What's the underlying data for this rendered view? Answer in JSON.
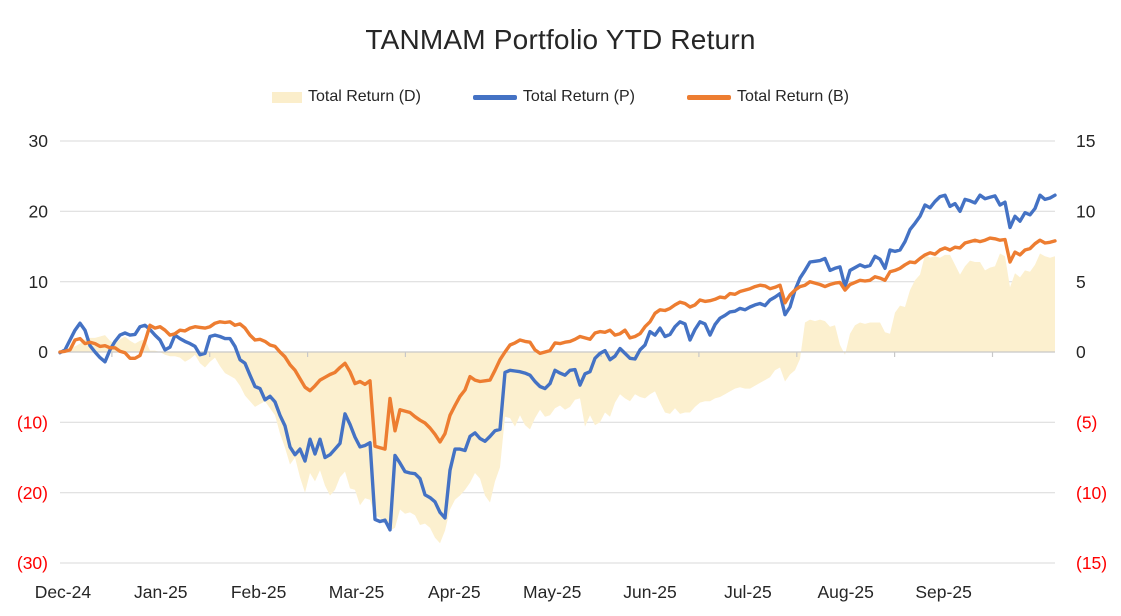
{
  "title": "TANMAM Portfolio YTD Return",
  "legend": {
    "items": [
      {
        "label": "Total Return (D)",
        "swatch": "area",
        "color": "#FBEECB"
      },
      {
        "label": "Total Return (P)",
        "swatch": "line",
        "color": "#4472C4"
      },
      {
        "label": "Total Return (B)",
        "swatch": "line",
        "color": "#ED7D31"
      }
    ]
  },
  "colors": {
    "grid": "#D9D9D9",
    "axis_line": "#C8C8C8",
    "label": "#262626",
    "negative_label": "#FF0000",
    "area_fill": "#FCF0CF"
  },
  "chart_data": {
    "type": "line",
    "title": "TANMAM Portfolio YTD Return",
    "x_unit": "months (0 = Jan-25 start)",
    "x_start": -0.53,
    "x_step": 0.0511,
    "x_tick_labels": [
      "Dec-24",
      "Jan-25",
      "Feb-25",
      "Mar-25",
      "Apr-25",
      "May-25",
      "Jun-25",
      "Jul-25",
      "Aug-25",
      "Sep-25"
    ],
    "x_tick_label_positions": [
      -0.5,
      0.5,
      1.5,
      2.5,
      3.5,
      4.5,
      5.5,
      6.5,
      7.5,
      8.5
    ],
    "x_axis_tick_marks": [
      0,
      1,
      2,
      3,
      4,
      5,
      6,
      7,
      8,
      9
    ],
    "grid": "horizontal",
    "legend_position": "top",
    "y_left": {
      "min": -30,
      "max": 30,
      "tick_values": [
        30,
        20,
        10,
        0,
        -10,
        -20,
        -30
      ],
      "tick_labels": [
        "30",
        "20",
        "10",
        "0",
        "(10)",
        "(20)",
        "(30)"
      ]
    },
    "y_right": {
      "min": -15,
      "max": 15,
      "tick_values": [
        15,
        10,
        5,
        0,
        -5,
        -10,
        -15
      ],
      "tick_labels": [
        "15",
        "10",
        "5",
        "0",
        "(5)",
        "(10)",
        "(15)"
      ]
    },
    "series": [
      {
        "name": "Total Return (D)",
        "type": "area",
        "axis": "right",
        "color": "#FCF0CF",
        "values": [
          0.0,
          0.1,
          0.3,
          0.4,
          0.6,
          0.9,
          1.0,
          1.0,
          1.1,
          1.2,
          0.8,
          0.6,
          0.9,
          1.1,
          0.8,
          0.6,
          0.8,
          0.9,
          0.1,
          0.1,
          0.0,
          -0.2,
          -0.3,
          -0.3,
          -0.4,
          -0.7,
          -0.5,
          -0.2,
          -0.8,
          -1.1,
          -0.7,
          -0.4,
          -1.0,
          -1.5,
          -1.7,
          -1.9,
          -2.4,
          -3.1,
          -3.5,
          -3.9,
          -3.7,
          -3.5,
          -4.0,
          -4.5,
          -5.8,
          -6.8,
          -8.0,
          -7.5,
          -8.9,
          -10.0,
          -8.6,
          -9.2,
          -8.4,
          -9.5,
          -10.2,
          -9.8,
          -8.9,
          -8.5,
          -9.7,
          -9.8,
          -10.9,
          -10.4,
          -10.5,
          -11.6,
          -11.8,
          -12.2,
          -12.7,
          -12.5,
          -11.2,
          -11.5,
          -11.4,
          -11.6,
          -12.3,
          -12.2,
          -12.5,
          -13.2,
          -13.6,
          -12.7,
          -11.2,
          -10.5,
          -10.2,
          -9.8,
          -9.3,
          -8.6,
          -9.0,
          -10.2,
          -10.7,
          -9.2,
          -8.2,
          -4.6,
          -4.7,
          -5.3,
          -4.5,
          -5.2,
          -5.5,
          -4.7,
          -4.1,
          -4.6,
          -4.5,
          -4.0,
          -3.8,
          -4.1,
          -3.9,
          -3.4,
          -3.3,
          -5.3,
          -4.5,
          -5.2,
          -5.0,
          -4.3,
          -4.6,
          -3.6,
          -3.0,
          -3.3,
          -3.5,
          -3.0,
          -3.2,
          -3.3,
          -3.0,
          -2.8,
          -3.6,
          -4.3,
          -4.4,
          -4.0,
          -4.4,
          -4.3,
          -4.3,
          -3.9,
          -3.6,
          -3.5,
          -3.5,
          -3.3,
          -3.2,
          -3.0,
          -2.8,
          -2.6,
          -2.5,
          -2.6,
          -2.6,
          -2.4,
          -2.2,
          -2.0,
          -1.8,
          -1.3,
          -1.1,
          -2.1,
          -1.6,
          -1.3,
          -0.5,
          2.1,
          2.3,
          2.2,
          2.3,
          2.2,
          1.8,
          1.9,
          0.5,
          -0.2,
          1.3,
          1.9,
          2.1,
          2.0,
          2.1,
          2.1,
          2.1,
          1.4,
          1.3,
          2.8,
          3.3,
          3.2,
          4.4,
          5.1,
          5.5,
          6.9,
          6.7,
          6.8,
          6.7,
          6.9,
          6.9,
          6.2,
          5.5,
          6.1,
          6.5,
          6.4,
          6.4,
          5.8,
          6.0,
          6.1,
          7.0,
          6.8,
          4.6,
          5.6,
          5.3,
          5.8,
          5.7,
          6.2,
          7.0,
          6.8,
          6.7,
          6.8
        ]
      },
      {
        "name": "Total Return (P)",
        "type": "line",
        "axis": "left",
        "color": "#4472C4",
        "values": [
          -0.1,
          0.3,
          1.7,
          3.1,
          4.1,
          3.1,
          0.9,
          0.0,
          -0.8,
          -1.4,
          0.3,
          1.5,
          2.4,
          2.7,
          2.4,
          2.5,
          3.6,
          3.8,
          3.2,
          2.4,
          1.7,
          0.3,
          0.7,
          2.4,
          1.9,
          1.5,
          1.2,
          0.8,
          -0.4,
          -0.2,
          2.2,
          2.4,
          2.2,
          1.9,
          1.9,
          0.8,
          -1.1,
          -1.6,
          -3.3,
          -4.9,
          -5.2,
          -6.8,
          -6.3,
          -7.1,
          -9.0,
          -10.5,
          -13.5,
          -14.6,
          -13.8,
          -15.5,
          -12.4,
          -14.5,
          -12.4,
          -15.0,
          -14.6,
          -13.8,
          -13.0,
          -8.8,
          -10.3,
          -12.1,
          -13.5,
          -13.3,
          -12.9,
          -23.8,
          -24.1,
          -23.9,
          -25.3,
          -14.7,
          -15.8,
          -17.0,
          -17.2,
          -17.3,
          -18.0,
          -20.3,
          -20.7,
          -21.3,
          -22.8,
          -23.6,
          -16.8,
          -13.8,
          -13.8,
          -14.0,
          -12.0,
          -11.5,
          -12.3,
          -12.7,
          -12.0,
          -11.2,
          -11.0,
          -2.9,
          -2.6,
          -2.7,
          -2.8,
          -3.0,
          -3.3,
          -4.2,
          -4.9,
          -5.2,
          -4.5,
          -2.6,
          -3.0,
          -3.3,
          -2.6,
          -2.5,
          -4.7,
          -3.1,
          -2.8,
          -0.9,
          -0.2,
          0.2,
          -1.1,
          -0.6,
          0.5,
          -0.2,
          -0.9,
          -1.0,
          0.3,
          1.0,
          2.9,
          2.4,
          3.4,
          2.2,
          2.5,
          3.6,
          4.3,
          4.0,
          1.7,
          3.2,
          4.3,
          4.0,
          2.4,
          3.9,
          4.8,
          5.2,
          5.7,
          5.8,
          6.2,
          6.0,
          6.4,
          6.7,
          6.9,
          6.6,
          7.4,
          7.8,
          8.3,
          5.3,
          6.4,
          8.8,
          10.5,
          11.6,
          12.8,
          12.9,
          13.0,
          13.3,
          11.6,
          11.9,
          12.1,
          9.3,
          11.6,
          12.0,
          12.4,
          12.1,
          12.3,
          13.6,
          13.2,
          11.9,
          14.5,
          14.3,
          14.5,
          15.7,
          17.4,
          18.3,
          19.3,
          20.9,
          20.5,
          21.4,
          22.1,
          22.3,
          20.7,
          21.1,
          20.0,
          21.7,
          21.5,
          21.2,
          22.3,
          21.8,
          22.0,
          22.2,
          20.9,
          21.3,
          17.7,
          19.3,
          18.6,
          19.8,
          19.5,
          20.4,
          22.3,
          21.7,
          21.9,
          22.3
        ]
      },
      {
        "name": "Total Return (B)",
        "type": "line",
        "axis": "left",
        "color": "#ED7D31",
        "values": [
          0.0,
          0.1,
          0.3,
          1.7,
          1.9,
          1.2,
          1.4,
          1.2,
          0.8,
          0.9,
          0.6,
          0.6,
          0.1,
          -0.1,
          -0.9,
          -0.9,
          -0.5,
          1.5,
          3.8,
          3.4,
          3.6,
          3.1,
          2.4,
          2.6,
          3.1,
          3.0,
          3.4,
          3.6,
          3.5,
          3.4,
          3.6,
          4.1,
          4.3,
          4.2,
          4.3,
          3.8,
          4.0,
          3.4,
          2.4,
          1.7,
          1.8,
          1.5,
          1.0,
          0.8,
          0.0,
          -0.7,
          -1.8,
          -2.6,
          -3.8,
          -5.0,
          -5.5,
          -4.8,
          -4.0,
          -3.6,
          -3.2,
          -2.9,
          -2.2,
          -1.6,
          -2.8,
          -4.5,
          -4.2,
          -4.6,
          -4.1,
          -13.4,
          -13.6,
          -13.8,
          -6.6,
          -11.2,
          -8.2,
          -8.4,
          -8.6,
          -9.2,
          -9.7,
          -10.1,
          -10.8,
          -11.7,
          -12.8,
          -11.6,
          -9.0,
          -7.6,
          -6.3,
          -5.4,
          -3.5,
          -4.0,
          -4.2,
          -4.1,
          -4.0,
          -2.6,
          -1.1,
          0.0,
          1.0,
          1.3,
          1.7,
          1.5,
          1.4,
          0.3,
          -0.2,
          0.0,
          0.2,
          1.3,
          1.2,
          1.4,
          1.5,
          1.8,
          2.2,
          2.0,
          1.8,
          2.7,
          2.9,
          2.8,
          3.1,
          2.4,
          2.6,
          3.1,
          2.0,
          2.2,
          2.6,
          3.6,
          4.3,
          5.5,
          6.0,
          5.9,
          6.2,
          6.7,
          7.1,
          6.9,
          6.4,
          6.7,
          7.4,
          7.2,
          7.3,
          7.5,
          7.8,
          7.7,
          8.3,
          8.2,
          8.6,
          8.8,
          9.0,
          9.3,
          9.5,
          9.4,
          9.0,
          9.2,
          9.5,
          7.0,
          8.1,
          8.8,
          9.3,
          9.5,
          10.0,
          9.8,
          9.6,
          9.3,
          9.6,
          9.8,
          9.9,
          8.8,
          9.6,
          9.9,
          10.2,
          10.1,
          10.2,
          10.7,
          10.5,
          10.2,
          11.4,
          11.6,
          11.9,
          12.4,
          12.8,
          12.7,
          13.3,
          13.8,
          14.1,
          13.9,
          14.5,
          14.8,
          14.5,
          14.9,
          14.8,
          15.5,
          15.7,
          15.9,
          15.7,
          15.9,
          16.2,
          16.1,
          15.9,
          16.0,
          12.8,
          14.2,
          13.8,
          14.5,
          14.7,
          15.4,
          15.9,
          15.5,
          15.6,
          15.8
        ]
      }
    ]
  }
}
